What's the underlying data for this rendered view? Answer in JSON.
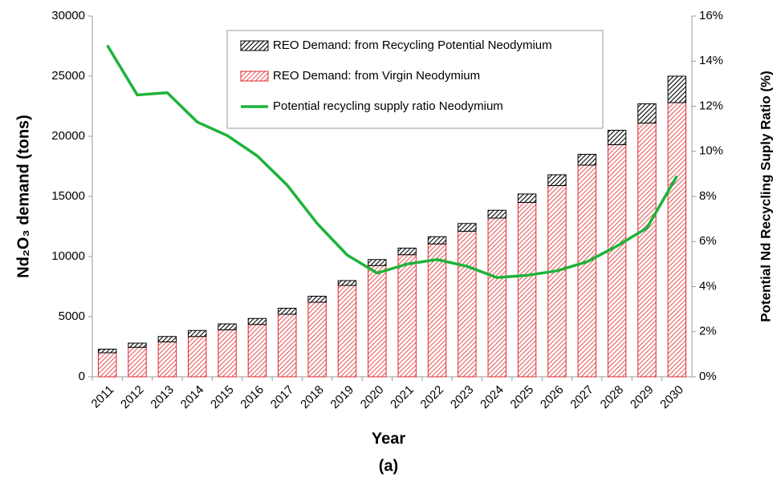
{
  "chart_data": {
    "type": "bar",
    "x_label": "Year",
    "y_label": "Nd₂O₃ demand (tons)",
    "y2_label": "Potential Nd Recycling Suply Ratio (%)",
    "caption": "(a)",
    "categories": [
      "2011",
      "2012",
      "2013",
      "2014",
      "2015",
      "2016",
      "2017",
      "2018",
      "2019",
      "2020",
      "2021",
      "2022",
      "2023",
      "2024",
      "2025",
      "2026",
      "2027",
      "2028",
      "2029",
      "2030"
    ],
    "series": [
      {
        "name": "REO Demand: from Virgin Neodymium",
        "type": "bar",
        "color": "#e0262b",
        "values": [
          2000,
          2450,
          2900,
          3350,
          3900,
          4350,
          5200,
          6200,
          7600,
          9250,
          10150,
          11050,
          12100,
          13200,
          14500,
          15900,
          17600,
          19300,
          21100,
          22800
        ]
      },
      {
        "name": "REO Demand: from Recycling Potential Neodymium",
        "type": "bar",
        "color": "#000000",
        "values": [
          300,
          350,
          450,
          500,
          500,
          500,
          500,
          500,
          400,
          500,
          550,
          600,
          650,
          650,
          700,
          900,
          900,
          1200,
          1600,
          2200
        ]
      },
      {
        "name": "Potential recycling supply ratio Neodymium",
        "type": "line",
        "axis": "y2",
        "color": "#1db33a",
        "values": [
          14.7,
          12.5,
          12.6,
          11.3,
          10.7,
          9.8,
          8.5,
          6.8,
          5.4,
          4.6,
          5.0,
          5.2,
          4.9,
          4.4,
          4.5,
          4.7,
          5.1,
          5.8,
          6.6,
          8.9
        ]
      }
    ],
    "ylim": [
      0,
      30000
    ],
    "yticks": [
      0,
      5000,
      10000,
      15000,
      20000,
      25000,
      30000
    ],
    "y2lim": [
      0,
      16
    ],
    "y2ticks": [
      {
        "value": 0,
        "label": "0%"
      },
      {
        "value": 2,
        "label": "2%"
      },
      {
        "value": 4,
        "label": "4%"
      },
      {
        "value": 6,
        "label": "6%"
      },
      {
        "value": 8,
        "label": "8%"
      },
      {
        "value": 10,
        "label": "10%"
      },
      {
        "value": 12,
        "label": "12%"
      },
      {
        "value": 14,
        "label": "14%"
      },
      {
        "value": 16,
        "label": "16%"
      }
    ],
    "grid": false
  }
}
